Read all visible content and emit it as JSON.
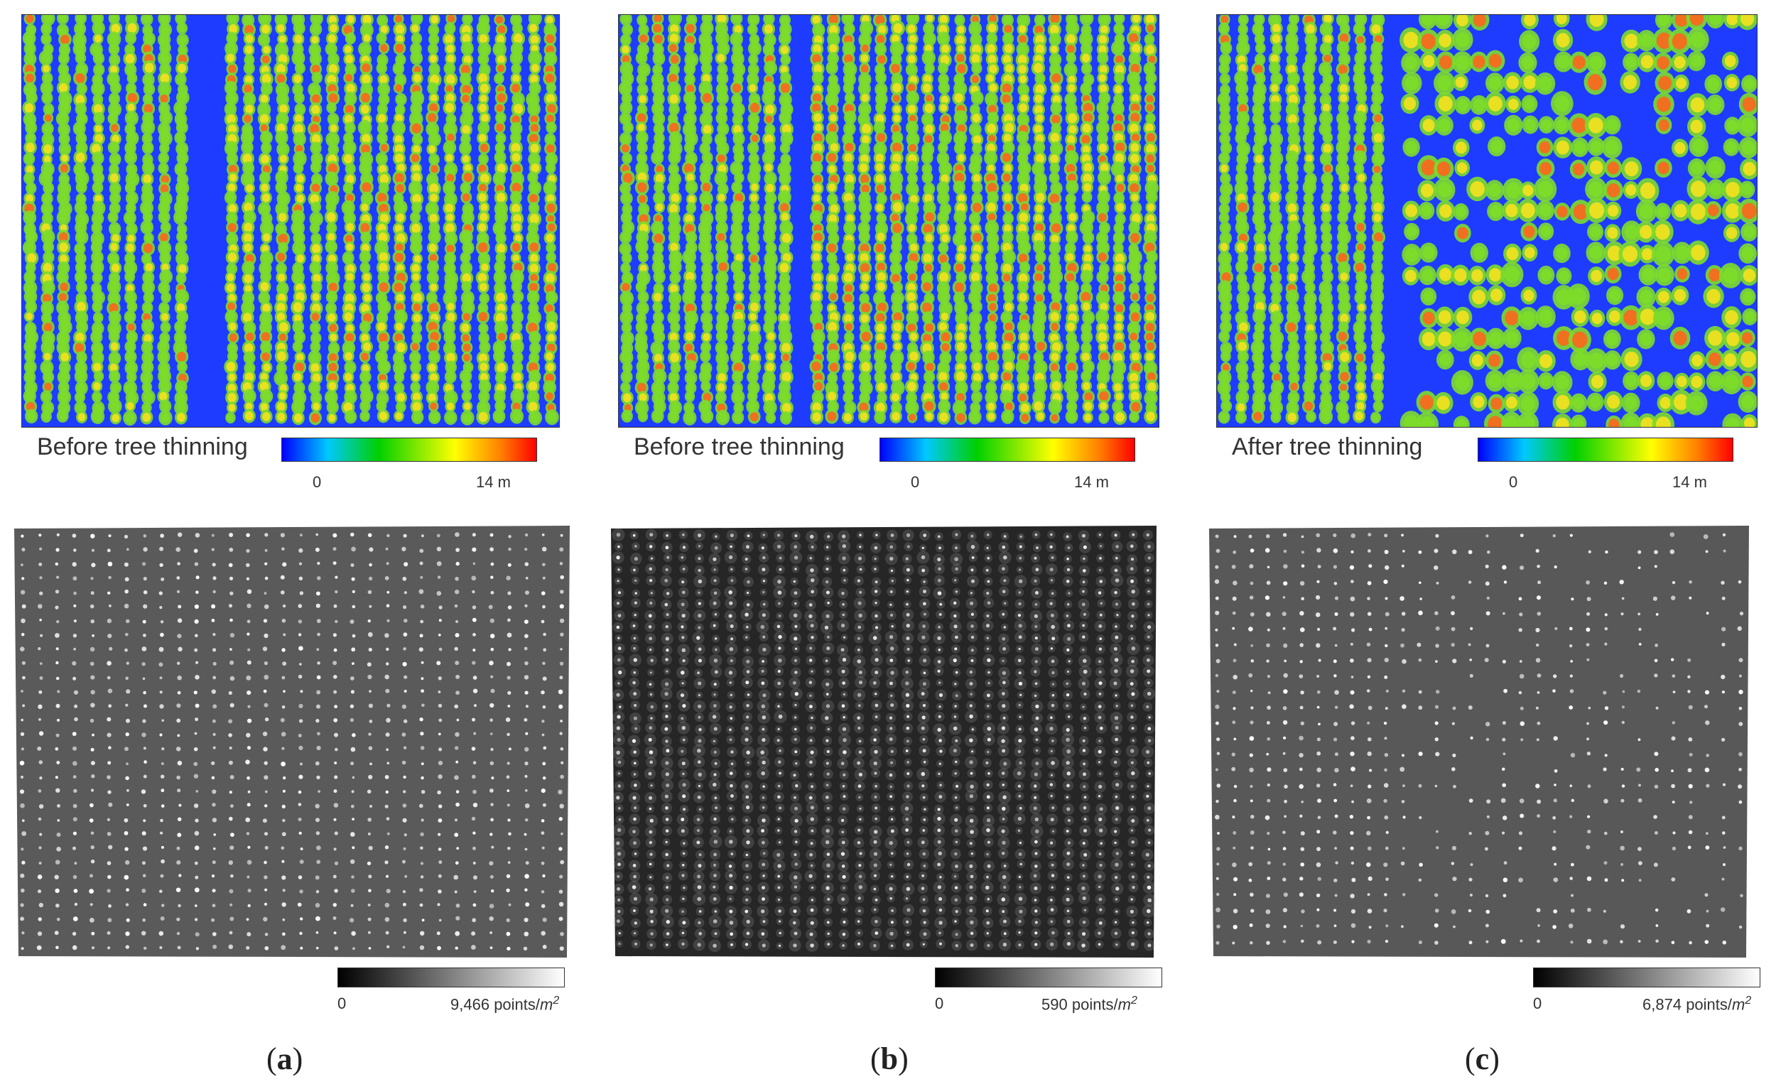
{
  "panels": [
    {
      "id": "a",
      "heightmap_label": "Before tree thinning",
      "height_scale": {
        "min_label": "0",
        "max_label": "14 m",
        "gradient": [
          "#0000ff",
          "#00d000",
          "#ffff00",
          "#ff0000"
        ]
      },
      "density_scale": {
        "min_label": "0",
        "max_value": "9,466",
        "unit": "points/",
        "unit_exp": "m",
        "unit_pow": "2"
      },
      "letter": "a"
    },
    {
      "id": "b",
      "heightmap_label": "Before tree thinning",
      "height_scale": {
        "min_label": "0",
        "max_label": "14 m",
        "gradient": [
          "#0000ff",
          "#00d000",
          "#ffff00",
          "#ff0000"
        ]
      },
      "density_scale": {
        "min_label": "0",
        "max_value": "590",
        "unit": "points/",
        "unit_exp": "m",
        "unit_pow": "2"
      },
      "letter": "b"
    },
    {
      "id": "c",
      "heightmap_label": "After tree thinning",
      "height_scale": {
        "min_label": "0",
        "max_label": "14 m",
        "gradient": [
          "#0000ff",
          "#00d000",
          "#ffff00",
          "#ff0000"
        ]
      },
      "density_scale": {
        "min_label": "0",
        "max_value": "6,874",
        "unit": "points/",
        "unit_exp": "m",
        "unit_pow": "2"
      },
      "letter": "c"
    }
  ],
  "colors": {
    "ground": "#1e3cff",
    "canopy_low": "#7ddc2a",
    "canopy_mid": "#e8e020",
    "canopy_high": "#f07020"
  }
}
